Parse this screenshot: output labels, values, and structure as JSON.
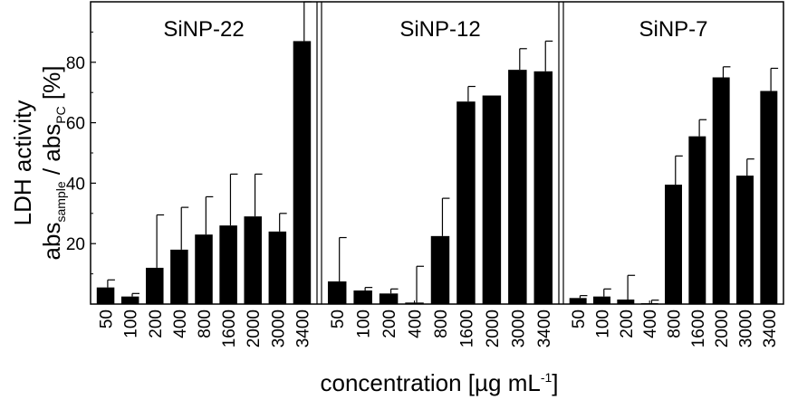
{
  "chart_data": {
    "type": "bar",
    "ylim": [
      0,
      100
    ],
    "y_ticks": [
      20,
      40,
      60,
      80
    ],
    "ylabel": {
      "line1": "LDH activity",
      "line2_a": "abs",
      "line2_a_sub": "sample",
      "line2_b": " / abs",
      "line2_b_sub": "PC",
      "line2_c": " [%]"
    },
    "xlabel": {
      "main": "concentration [µg mL",
      "sup": "-1",
      "end": "]"
    },
    "panels": [
      {
        "title": "SiNP-22",
        "categories": [
          "50",
          "100",
          "200",
          "400",
          "800",
          "1600",
          "2000",
          "3000",
          "3400"
        ],
        "values": [
          5.5,
          2.5,
          12,
          18,
          23,
          26,
          29,
          24,
          87
        ],
        "errors": [
          2.5,
          1,
          17.5,
          14,
          12.5,
          17,
          14,
          6,
          14
        ]
      },
      {
        "title": "SiNP-12",
        "categories": [
          "50",
          "100",
          "200",
          "400",
          "800",
          "1600",
          "2000",
          "3000",
          "3400"
        ],
        "values": [
          7.5,
          4.5,
          3.5,
          0.5,
          22.5,
          67,
          69,
          77.5,
          77
        ],
        "errors": [
          14.5,
          1,
          1.5,
          12,
          12.5,
          5,
          0,
          7,
          10
        ]
      },
      {
        "title": "SiNP-7",
        "categories": [
          "50",
          "100",
          "200",
          "400",
          "800",
          "1600",
          "2000",
          "3000",
          "3400"
        ],
        "values": [
          2,
          2.5,
          1.5,
          0.3,
          39.5,
          55.5,
          75,
          42.5,
          70.5
        ],
        "errors": [
          0.8,
          2.5,
          8,
          1,
          9.5,
          5.5,
          3.5,
          5.5,
          7.5
        ]
      }
    ]
  }
}
